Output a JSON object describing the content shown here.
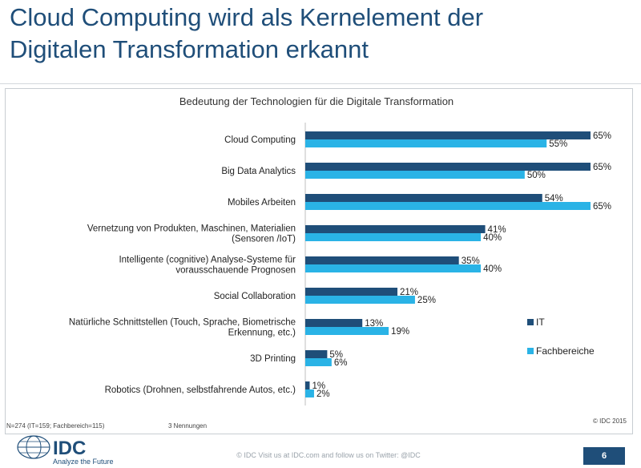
{
  "slide": {
    "title_line1": "Cloud Computing wird als Kernelement der",
    "title_line2": "Digitalen Transformation erkannt"
  },
  "chart_data": {
    "type": "bar",
    "orientation": "horizontal",
    "title": "Bedeutung der Technologien für die Digitale Transformation",
    "xlabel": "",
    "ylabel": "",
    "xlim": [
      0,
      65
    ],
    "grid": false,
    "legend_position": "right",
    "categories": [
      [
        "Cloud Computing"
      ],
      [
        "Big Data Analytics"
      ],
      [
        "Mobiles Arbeiten"
      ],
      [
        "Vernetzung von Produkten, Maschinen, Materialien",
        "(Sensoren /IoT)"
      ],
      [
        "Intelligente (cognitive) Analyse-Systeme für",
        "vorausschauende Prognosen"
      ],
      [
        "Social Collaboration"
      ],
      [
        "Natürliche Schnittstellen (Touch, Sprache, Biometrische",
        "Erkennung, etc.)"
      ],
      [
        "3D Printing"
      ],
      [
        "Robotics (Drohnen, selbstfahrende Autos, etc.)"
      ]
    ],
    "series": [
      {
        "name": "IT",
        "color": "#1f4e79",
        "values": [
          65,
          65,
          54,
          41,
          35,
          21,
          13,
          5,
          1
        ]
      },
      {
        "name": "Fachbereiche",
        "color": "#2ab3e6",
        "values": [
          55,
          50,
          65,
          40,
          40,
          25,
          19,
          6,
          2
        ]
      }
    ],
    "value_suffix": "%"
  },
  "footer": {
    "sample_note": "N=274 (IT=159; Fachbereich=115)",
    "answers_note": "3 Nennungen",
    "copyright": "© IDC 2015",
    "footer_text": "© IDC   Visit us at IDC.com and follow us on Twitter: @IDC",
    "page_number": "6"
  },
  "logo": {
    "name": "IDC",
    "tagline": "Analyze the Future",
    "color": "#1f4e79"
  }
}
